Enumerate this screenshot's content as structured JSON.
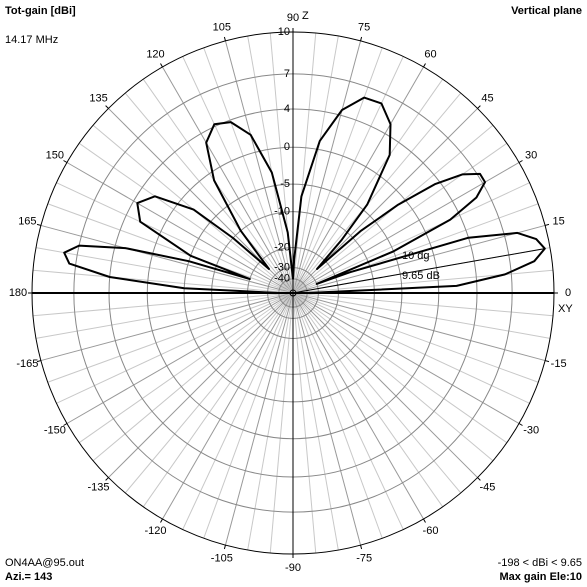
{
  "chart_data": {
    "type": "polar",
    "title": "Tot-gain [dBi]",
    "subtitle": "14.17 MHz",
    "plane": "Vertical plane",
    "radial_scale": "arrl-log",
    "color": "#000000",
    "grid": true,
    "x_axis_label": "XY",
    "z_axis_label": "Z",
    "x": [
      0,
      2.5,
      5,
      7.5,
      10,
      12.5,
      15,
      17.5,
      20,
      21,
      22.5,
      25,
      27.5,
      30,
      32.5,
      35,
      37.5,
      40,
      42.5,
      45,
      47.5,
      50,
      55,
      60,
      65,
      70,
      75,
      80,
      85,
      88,
      90,
      95,
      100,
      105,
      110,
      115,
      120,
      125,
      130,
      135,
      137.5,
      140,
      145,
      150,
      155,
      160,
      162,
      163,
      165,
      167.5,
      170,
      172.5,
      175,
      177.5,
      180
    ],
    "values": [
      -40,
      2,
      6.5,
      8.8,
      9.65,
      9.2,
      8,
      4,
      -15,
      -30,
      -5,
      3,
      6,
      7.2,
      7.2,
      6,
      3.5,
      -1,
      -8,
      -25,
      -12,
      -4,
      2.5,
      5,
      6.2,
      6.1,
      4.5,
      1,
      -7,
      -25,
      -40,
      -15,
      -3,
      2,
      3.8,
      4.2,
      3,
      -1,
      -10,
      -25,
      -10,
      -2,
      2.5,
      3.6,
      2.5,
      -5,
      -20,
      -5,
      3,
      7,
      8,
      7.5,
      4,
      -5,
      -40
    ],
    "ylim": [
      -40,
      10
    ],
    "yticks": [
      10,
      7,
      4,
      0,
      -5,
      -10,
      -20,
      -30,
      -40
    ],
    "xticks": [
      0,
      15,
      30,
      45,
      60,
      75,
      90,
      105,
      120,
      135,
      150,
      165,
      180,
      -165,
      -150,
      -135,
      -120,
      -105,
      -90,
      -75,
      -60,
      -45,
      -30,
      -15
    ],
    "max_marker": {
      "angle": {
        "value": 10,
        "label": "10 dg"
      },
      "gain": {
        "value": 9.65,
        "label": "9.65 dB"
      }
    },
    "footer": {
      "file": "ON4AA@95.out",
      "azimuth": "Azi.= 143",
      "range": "-198 < dBi < 9.65",
      "max_gain": "Max gain Ele:10"
    }
  }
}
